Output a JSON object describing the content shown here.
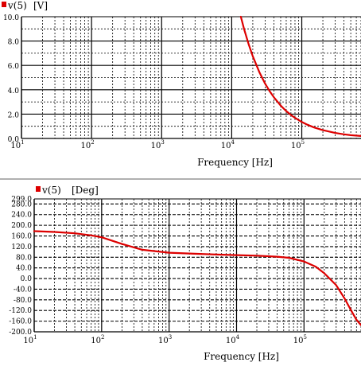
{
  "colors": {
    "trace": "#dd0000",
    "grid": "#000000",
    "divider": "#b0b0b0"
  },
  "chart_data": [
    {
      "type": "line",
      "legend": {
        "series": "v(5)",
        "unit": "[V]",
        "marker_color": "#dd0000"
      },
      "xlabel": "Frequency [Hz]",
      "xscale": "log",
      "xlim": [
        10,
        700000
      ],
      "ylim": [
        0,
        10
      ],
      "x_ticks": [
        {
          "base": "10",
          "exp": "1"
        },
        {
          "base": "10",
          "exp": "2"
        },
        {
          "base": "10",
          "exp": "3"
        },
        {
          "base": "10",
          "exp": "4"
        },
        {
          "base": "10",
          "exp": "5"
        }
      ],
      "y_ticks": [
        "10.0",
        "8.0",
        "6.0",
        "4.0",
        "2.0",
        "0.0"
      ],
      "grid": true,
      "series": [
        {
          "name": "v(5)",
          "x": [
            13500,
            15000,
            17500,
            20000,
            25000,
            30000,
            35000,
            40000,
            50000,
            60000,
            70000,
            80000,
            100000,
            120000,
            150000,
            200000,
            300000,
            400000,
            500000,
            700000
          ],
          "y": [
            10.0,
            9.0,
            7.72,
            6.75,
            5.4,
            4.5,
            3.86,
            3.38,
            2.7,
            2.25,
            1.93,
            1.69,
            1.35,
            1.13,
            0.9,
            0.68,
            0.45,
            0.34,
            0.27,
            0.2
          ]
        }
      ]
    },
    {
      "type": "line",
      "legend": {
        "series": "v(5)",
        "unit": "[Deg]",
        "marker_color": "#dd0000"
      },
      "xlabel": "Frequency [Hz]",
      "xscale": "log",
      "xlim": [
        10,
        700000
      ],
      "ylim": [
        -200,
        299
      ],
      "x_ticks": [
        {
          "base": "10",
          "exp": "1"
        },
        {
          "base": "10",
          "exp": "2"
        },
        {
          "base": "10",
          "exp": "3"
        },
        {
          "base": "10",
          "exp": "4"
        },
        {
          "base": "10",
          "exp": "5"
        }
      ],
      "y_ticks": [
        "299.0",
        "280.0",
        "240.0",
        "200.0",
        "160.0",
        "120.0",
        "80.0",
        "40.0",
        "0.0",
        "-40.0",
        "-80.0",
        "-120.0",
        "-160.0",
        "-200.0"
      ],
      "grid": true,
      "series": [
        {
          "name": "v(5)",
          "x": [
            10,
            20,
            40,
            70,
            100,
            200,
            400,
            1000,
            2000,
            5000,
            10000,
            20000,
            40000,
            60000,
            100000,
            150000,
            200000,
            300000,
            400000,
            500000,
            600000,
            700000
          ],
          "y": [
            178,
            175,
            170,
            162,
            155,
            130,
            108,
            97,
            94,
            90,
            88,
            86,
            82,
            78,
            64,
            44,
            20,
            -25,
            -75,
            -120,
            -155,
            -175
          ]
        }
      ]
    }
  ]
}
